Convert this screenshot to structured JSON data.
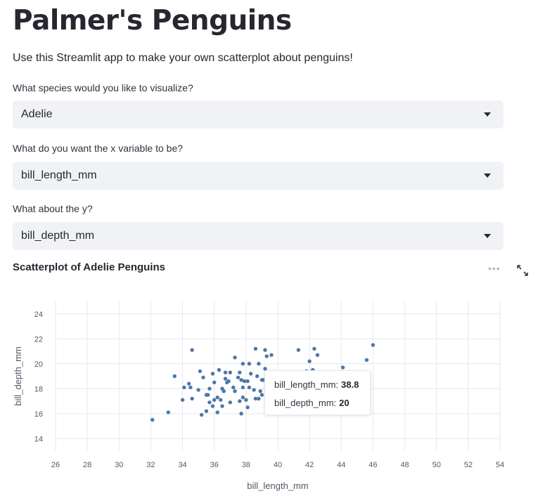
{
  "title": "Palmer's Penguins",
  "intro": "Use this Streamlit app to make your own scatterplot about penguins!",
  "controls": [
    {
      "label": "What species would you like to visualize?",
      "value": "Adelie"
    },
    {
      "label": "What do you want the x variable to be?",
      "value": "bill_length_mm"
    },
    {
      "label": "What about the y?",
      "value": "bill_depth_mm"
    }
  ],
  "chart_header": {
    "title": "Scatterplot of Adelie Penguins",
    "more_icon": "more-horizontal-icon",
    "expand_icon": "expand-icon"
  },
  "tooltip": {
    "x_key": "bill_length_mm:",
    "x_val": "38.8",
    "y_key": "bill_depth_mm:",
    "y_val": "20"
  },
  "colors": {
    "point": "#4c78a8",
    "select_bg": "#f0f2f6",
    "grid": "#e6e8ee"
  },
  "chart_data": {
    "type": "scatter",
    "title": "Scatterplot of Adelie Penguins",
    "xlabel": "bill_length_mm",
    "ylabel": "bill_depth_mm",
    "xlim": [
      26,
      54
    ],
    "ylim": [
      13,
      25
    ],
    "xticks": [
      26,
      28,
      30,
      32,
      34,
      36,
      38,
      40,
      42,
      44,
      46,
      48,
      50,
      52,
      54
    ],
    "yticks": [
      14,
      16,
      18,
      20,
      22,
      24
    ],
    "grid": true,
    "points": [
      [
        32.1,
        15.5
      ],
      [
        33.1,
        16.1
      ],
      [
        33.5,
        19.0
      ],
      [
        34.0,
        17.1
      ],
      [
        34.1,
        18.1
      ],
      [
        34.4,
        18.4
      ],
      [
        34.5,
        18.1
      ],
      [
        34.6,
        21.1
      ],
      [
        34.6,
        17.2
      ],
      [
        35.0,
        17.9
      ],
      [
        35.1,
        19.4
      ],
      [
        35.2,
        15.9
      ],
      [
        35.3,
        18.9
      ],
      [
        35.5,
        16.2
      ],
      [
        35.5,
        17.5
      ],
      [
        35.6,
        17.5
      ],
      [
        35.7,
        16.9
      ],
      [
        35.7,
        18.0
      ],
      [
        35.9,
        19.2
      ],
      [
        35.9,
        16.6
      ],
      [
        36.0,
        17.1
      ],
      [
        36.0,
        18.5
      ],
      [
        36.2,
        17.3
      ],
      [
        36.2,
        16.1
      ],
      [
        36.3,
        19.5
      ],
      [
        36.4,
        17.1
      ],
      [
        36.5,
        16.6
      ],
      [
        36.5,
        18.0
      ],
      [
        36.6,
        17.8
      ],
      [
        36.7,
        18.8
      ],
      [
        36.7,
        19.3
      ],
      [
        36.8,
        18.5
      ],
      [
        36.9,
        18.6
      ],
      [
        37.0,
        16.9
      ],
      [
        37.0,
        19.3
      ],
      [
        37.2,
        18.1
      ],
      [
        37.3,
        17.8
      ],
      [
        37.3,
        20.5
      ],
      [
        37.5,
        18.9
      ],
      [
        37.6,
        17.0
      ],
      [
        37.6,
        19.3
      ],
      [
        37.7,
        18.7
      ],
      [
        37.7,
        16.0
      ],
      [
        37.8,
        17.3
      ],
      [
        37.8,
        18.1
      ],
      [
        37.8,
        20.0
      ],
      [
        37.9,
        18.6
      ],
      [
        38.0,
        17.1
      ],
      [
        38.1,
        18.6
      ],
      [
        38.1,
        16.5
      ],
      [
        38.2,
        18.1
      ],
      [
        38.2,
        20.0
      ],
      [
        38.3,
        19.2
      ],
      [
        38.5,
        17.9
      ],
      [
        38.6,
        21.2
      ],
      [
        38.6,
        17.2
      ],
      [
        38.7,
        19.0
      ],
      [
        38.8,
        17.2
      ],
      [
        38.8,
        20.0
      ],
      [
        38.9,
        17.8
      ],
      [
        39.0,
        17.5
      ],
      [
        39.0,
        18.7
      ],
      [
        39.1,
        18.7
      ],
      [
        39.2,
        21.1
      ],
      [
        39.2,
        19.6
      ],
      [
        39.3,
        20.6
      ],
      [
        39.5,
        17.4
      ],
      [
        39.5,
        16.7
      ],
      [
        39.6,
        17.7
      ],
      [
        39.6,
        20.7
      ],
      [
        39.7,
        18.4
      ],
      [
        39.8,
        19.1
      ],
      [
        40.1,
        18.9
      ],
      [
        40.2,
        17.0
      ],
      [
        40.3,
        18.0
      ],
      [
        40.6,
        18.6
      ],
      [
        40.9,
        18.9
      ],
      [
        41.1,
        18.2
      ],
      [
        41.1,
        19.1
      ],
      [
        41.3,
        21.1
      ],
      [
        41.4,
        18.5
      ],
      [
        41.5,
        18.3
      ],
      [
        41.6,
        18.0
      ],
      [
        41.8,
        19.4
      ],
      [
        42.0,
        20.2
      ],
      [
        42.2,
        18.5
      ],
      [
        42.2,
        19.5
      ],
      [
        42.3,
        21.2
      ],
      [
        42.5,
        20.7
      ],
      [
        44.1,
        19.7
      ],
      [
        45.6,
        20.3
      ],
      [
        46.0,
        21.5
      ]
    ]
  }
}
